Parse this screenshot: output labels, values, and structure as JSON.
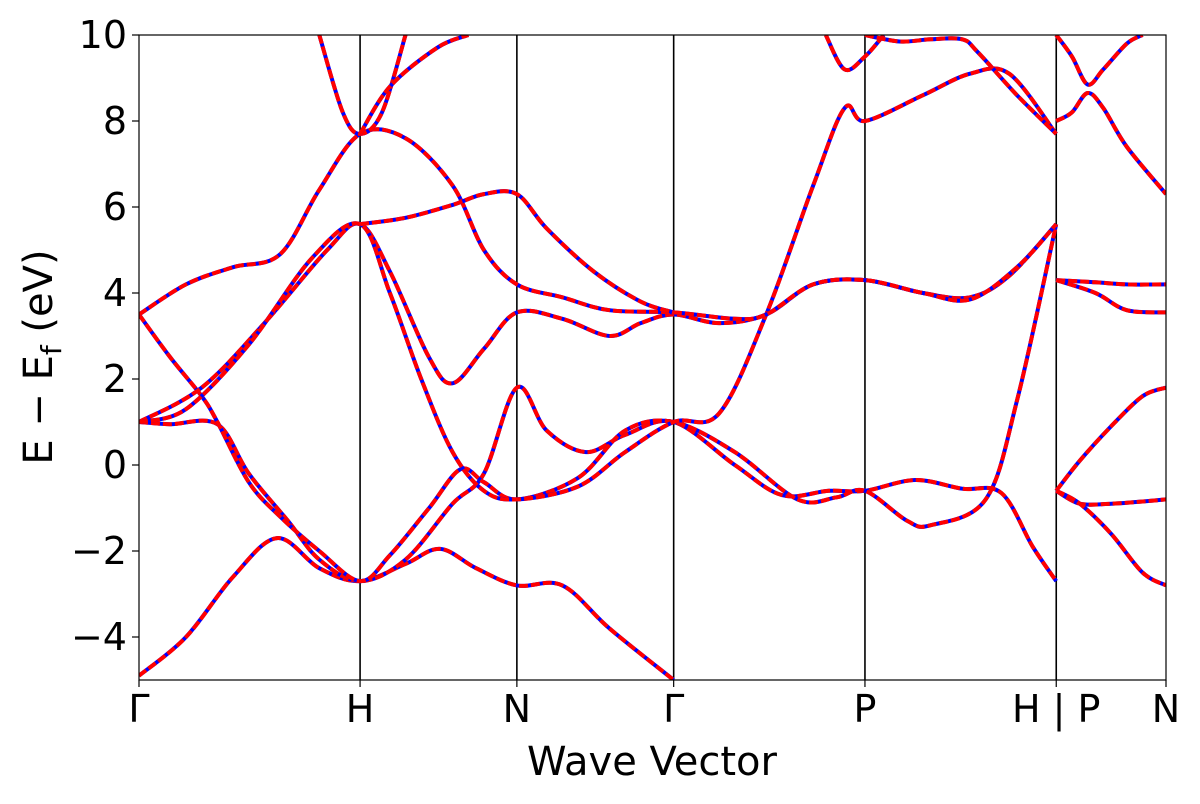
{
  "chart_data": {
    "type": "line",
    "title": "",
    "xlabel": "Wave Vector",
    "ylabel": "E − E_f (eV)",
    "ylabel_parts": {
      "main": "E − E",
      "sub": "f",
      "unit": " (eV)"
    },
    "ylim": [
      -5,
      10
    ],
    "xlim": [
      0,
      6.55
    ],
    "y_ticks": [
      -4,
      -2,
      0,
      2,
      4,
      6,
      8,
      10
    ],
    "y_tick_labels": [
      "−4",
      "−2",
      "0",
      "2",
      "4",
      "6",
      "8",
      "10"
    ],
    "grid": false,
    "legend": "none",
    "high_symmetry_points": [
      {
        "x": 0.0,
        "label": "Γ",
        "vline": false
      },
      {
        "x": 1.41,
        "label": "H",
        "vline": true
      },
      {
        "x": 2.41,
        "label": "N",
        "vline": true
      },
      {
        "x": 3.41,
        "label": "Γ",
        "vline": true
      },
      {
        "x": 4.63,
        "label": "P",
        "vline": true
      },
      {
        "x": 5.85,
        "label": "H | P",
        "vline": true
      },
      {
        "x": 6.55,
        "label": "N",
        "vline": false
      }
    ],
    "series_styles": [
      {
        "id": "reference",
        "color": "#0000ff",
        "style": "solid"
      },
      {
        "id": "comparison",
        "color": "#ff0000",
        "style": "dashed"
      }
    ],
    "bands": [
      [
        [
          0.0,
          -4.9
        ],
        [
          0.3,
          -4.0
        ],
        [
          0.6,
          -2.6
        ],
        [
          0.88,
          -1.7
        ],
        [
          1.15,
          -2.4
        ],
        [
          1.41,
          -2.7
        ],
        [
          1.7,
          -2.3
        ],
        [
          1.92,
          -1.95
        ],
        [
          2.15,
          -2.4
        ],
        [
          2.41,
          -2.8
        ],
        [
          2.7,
          -2.8
        ],
        [
          3.0,
          -3.8
        ],
        [
          3.41,
          -5.0
        ]
      ],
      [
        [
          0.0,
          1.0
        ],
        [
          0.2,
          0.95
        ],
        [
          0.5,
          0.95
        ],
        [
          0.7,
          -0.2
        ],
        [
          0.95,
          -1.3
        ],
        [
          1.15,
          -2.2
        ],
        [
          1.41,
          -2.7
        ],
        [
          1.7,
          -2.2
        ],
        [
          2.0,
          -0.9
        ],
        [
          2.2,
          -0.2
        ],
        [
          2.41,
          1.8
        ],
        [
          2.6,
          0.8
        ],
        [
          2.85,
          0.3
        ],
        [
          3.1,
          0.7
        ],
        [
          3.41,
          1.0
        ],
        [
          3.8,
          0.0
        ],
        [
          4.1,
          -0.7
        ],
        [
          4.4,
          -0.6
        ],
        [
          4.63,
          -0.6
        ],
        [
          4.95,
          -0.35
        ],
        [
          5.25,
          -0.55
        ],
        [
          5.5,
          -0.65
        ],
        [
          5.7,
          -1.9
        ],
        [
          5.85,
          -2.7
        ]
      ],
      [
        [
          0.0,
          3.5
        ],
        [
          0.2,
          2.5
        ],
        [
          0.4,
          1.6
        ],
        [
          0.5,
          1.0
        ],
        [
          0.7,
          -0.4
        ],
        [
          0.9,
          -1.2
        ],
        [
          1.15,
          -2.0
        ],
        [
          1.41,
          -2.7
        ],
        [
          1.6,
          -2.1
        ],
        [
          1.85,
          -1.0
        ],
        [
          2.05,
          -0.1
        ],
        [
          2.2,
          -0.4
        ],
        [
          2.41,
          -0.8
        ],
        [
          2.8,
          -0.3
        ],
        [
          3.1,
          0.8
        ],
        [
          3.41,
          1.0
        ],
        [
          3.8,
          0.3
        ],
        [
          4.2,
          -0.8
        ],
        [
          4.45,
          -0.75
        ],
        [
          4.63,
          -0.6
        ],
        [
          4.9,
          -1.3
        ],
        [
          5.05,
          -1.4
        ],
        [
          5.4,
          -0.8
        ],
        [
          5.6,
          1.5
        ],
        [
          5.85,
          5.6
        ]
      ],
      [
        [
          0.0,
          1.0
        ],
        [
          0.4,
          1.8
        ],
        [
          0.8,
          3.3
        ],
        [
          1.2,
          5.0
        ],
        [
          1.41,
          5.6
        ],
        [
          1.6,
          4.5
        ],
        [
          1.85,
          2.5
        ],
        [
          2.0,
          1.9
        ],
        [
          2.2,
          2.7
        ],
        [
          2.41,
          3.55
        ],
        [
          2.7,
          3.4
        ],
        [
          3.0,
          3.0
        ],
        [
          3.2,
          3.3
        ],
        [
          3.41,
          3.5
        ],
        [
          3.7,
          3.3
        ],
        [
          4.0,
          3.5
        ],
        [
          4.3,
          4.2
        ],
        [
          4.63,
          4.3
        ],
        [
          5.0,
          4.0
        ],
        [
          5.3,
          3.9
        ],
        [
          5.55,
          4.4
        ],
        [
          5.85,
          5.6
        ]
      ],
      [
        [
          0.0,
          1.0
        ],
        [
          0.3,
          1.3
        ],
        [
          0.7,
          2.8
        ],
        [
          1.1,
          4.8
        ],
        [
          1.41,
          5.6
        ],
        [
          1.6,
          4.0
        ],
        [
          1.8,
          2.0
        ],
        [
          2.0,
          0.3
        ],
        [
          2.2,
          -0.6
        ],
        [
          2.41,
          -0.8
        ],
        [
          2.8,
          -0.5
        ],
        [
          3.1,
          0.3
        ],
        [
          3.41,
          1.0
        ],
        [
          3.7,
          1.2
        ],
        [
          4.0,
          3.5
        ],
        [
          4.3,
          6.5
        ],
        [
          4.5,
          8.3
        ],
        [
          4.63,
          8.0
        ],
        [
          5.0,
          8.6
        ],
        [
          5.3,
          9.1
        ],
        [
          5.55,
          9.1
        ],
        [
          5.85,
          7.7
        ]
      ],
      [
        [
          0.0,
          3.5
        ],
        [
          0.3,
          4.2
        ],
        [
          0.6,
          4.6
        ],
        [
          0.9,
          4.9
        ],
        [
          1.15,
          6.4
        ],
        [
          1.41,
          7.7
        ],
        [
          1.7,
          7.6
        ],
        [
          2.0,
          6.5
        ],
        [
          2.2,
          5.0
        ],
        [
          2.41,
          4.2
        ],
        [
          2.7,
          3.9
        ],
        [
          3.0,
          3.6
        ],
        [
          3.41,
          3.55
        ],
        [
          3.8,
          3.4
        ],
        [
          4.0,
          3.5
        ],
        [
          4.3,
          4.2
        ],
        [
          4.63,
          4.3
        ],
        [
          5.0,
          4.0
        ],
        [
          5.3,
          3.85
        ],
        [
          5.6,
          4.6
        ],
        [
          5.85,
          5.6
        ]
      ],
      [
        [
          1.41,
          5.6
        ],
        [
          1.7,
          5.75
        ],
        [
          2.0,
          6.05
        ],
        [
          2.2,
          6.3
        ],
        [
          2.41,
          6.3
        ],
        [
          2.6,
          5.5
        ],
        [
          2.9,
          4.5
        ],
        [
          3.2,
          3.8
        ],
        [
          3.41,
          3.55
        ]
      ],
      [
        [
          1.15,
          10.0
        ],
        [
          1.3,
          8.2
        ],
        [
          1.41,
          7.7
        ],
        [
          1.55,
          8.2
        ],
        [
          1.7,
          10.0
        ]
      ],
      [
        [
          1.41,
          7.7
        ],
        [
          1.6,
          8.8
        ],
        [
          1.9,
          9.7
        ],
        [
          2.1,
          10.0
        ]
      ],
      [
        [
          4.38,
          10.0
        ],
        [
          4.5,
          9.2
        ],
        [
          4.63,
          9.5
        ],
        [
          4.75,
          10.0
        ]
      ],
      [
        [
          4.63,
          10.0
        ],
        [
          4.85,
          9.85
        ],
        [
          5.05,
          9.9
        ],
        [
          5.25,
          9.9
        ],
        [
          5.35,
          9.6
        ],
        [
          5.6,
          8.6
        ],
        [
          5.85,
          7.7
        ]
      ],
      [
        [
          5.85,
          -0.6
        ],
        [
          6.0,
          0.1
        ],
        [
          6.2,
          0.9
        ],
        [
          6.4,
          1.6
        ],
        [
          6.55,
          1.8
        ]
      ],
      [
        [
          5.85,
          -0.6
        ],
        [
          6.0,
          -0.9
        ],
        [
          6.2,
          -0.9
        ],
        [
          6.4,
          -0.85
        ],
        [
          6.55,
          -0.8
        ]
      ],
      [
        [
          5.85,
          -0.6
        ],
        [
          6.0,
          -0.9
        ],
        [
          6.2,
          -1.6
        ],
        [
          6.4,
          -2.5
        ],
        [
          6.55,
          -2.8
        ]
      ],
      [
        [
          5.85,
          4.3
        ],
        [
          6.1,
          4.25
        ],
        [
          6.3,
          4.2
        ],
        [
          6.55,
          4.2
        ]
      ],
      [
        [
          5.85,
          4.3
        ],
        [
          6.1,
          4.0
        ],
        [
          6.3,
          3.6
        ],
        [
          6.55,
          3.55
        ]
      ],
      [
        [
          5.85,
          8.0
        ],
        [
          5.95,
          8.2
        ],
        [
          6.05,
          8.65
        ],
        [
          6.15,
          8.3
        ],
        [
          6.3,
          7.4
        ],
        [
          6.55,
          6.3
        ]
      ],
      [
        [
          5.85,
          10.0
        ],
        [
          5.95,
          9.5
        ],
        [
          6.05,
          8.85
        ],
        [
          6.15,
          9.2
        ],
        [
          6.3,
          9.8
        ],
        [
          6.4,
          10.0
        ]
      ]
    ]
  }
}
